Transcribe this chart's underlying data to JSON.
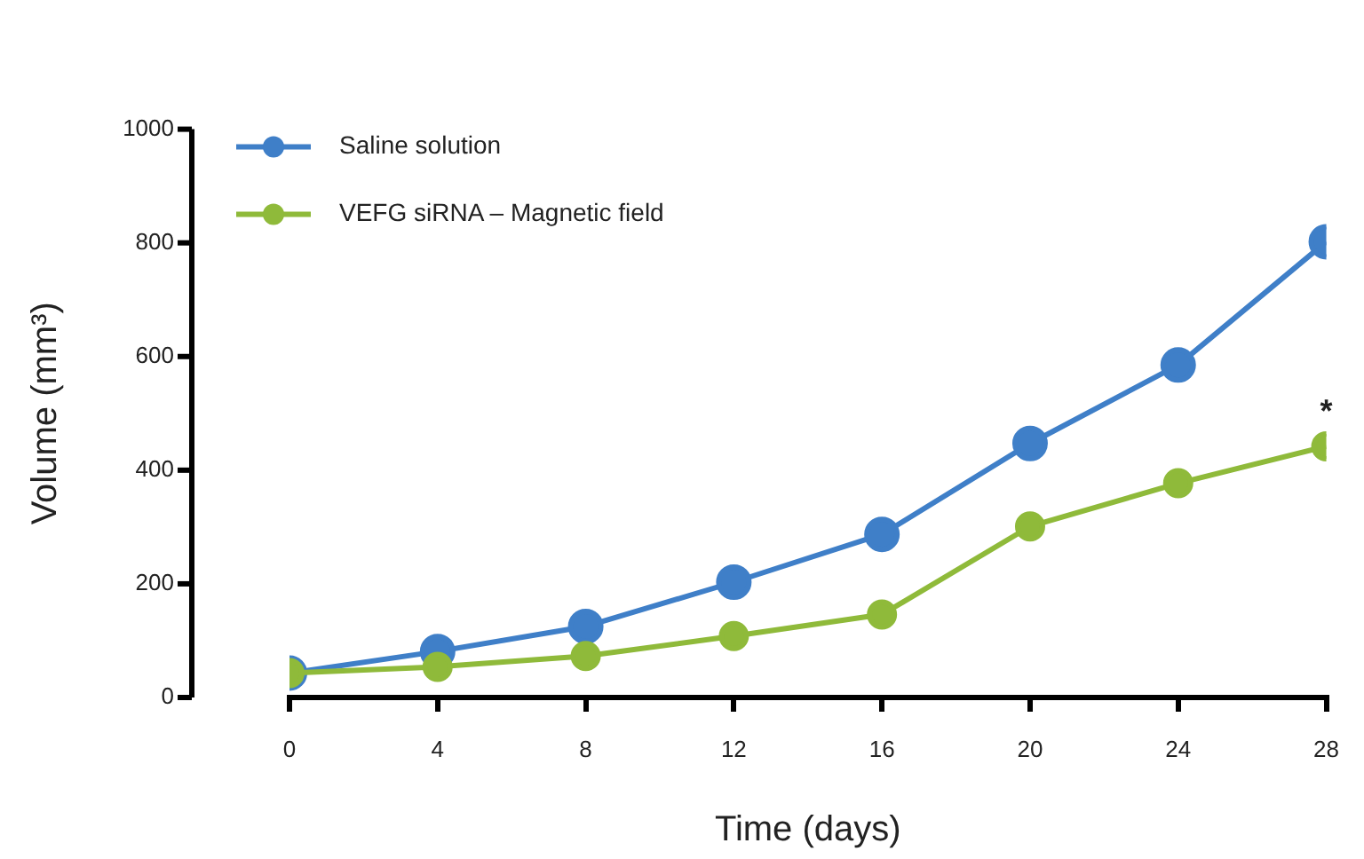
{
  "chart_data": {
    "type": "line",
    "xlabel": "Time (days)",
    "ylabel": "Volume (mm³)",
    "x": [
      0,
      4,
      8,
      12,
      16,
      20,
      24,
      28
    ],
    "series": [
      {
        "name": "Saline solution",
        "color": "#3f7fc8",
        "values": [
          43,
          81,
          125,
          203,
          287,
          447,
          585,
          802
        ]
      },
      {
        "name": "VEFG siRNA – Magnetic field",
        "color": "#8fba3a",
        "values": [
          43,
          54,
          73,
          108,
          146,
          301,
          377,
          442
        ]
      }
    ],
    "xlim": [
      0,
      28
    ],
    "xticks": [
      0,
      4,
      8,
      12,
      16,
      20,
      24,
      28
    ],
    "ylim": [
      0,
      1000
    ],
    "yticks": [
      0,
      200,
      400,
      600,
      800,
      1000
    ],
    "annotations": [
      {
        "text": "*",
        "x": 28,
        "y": 442
      }
    ],
    "grid": false,
    "legend": "top left",
    "marker": "circle",
    "line_style": "solid"
  }
}
